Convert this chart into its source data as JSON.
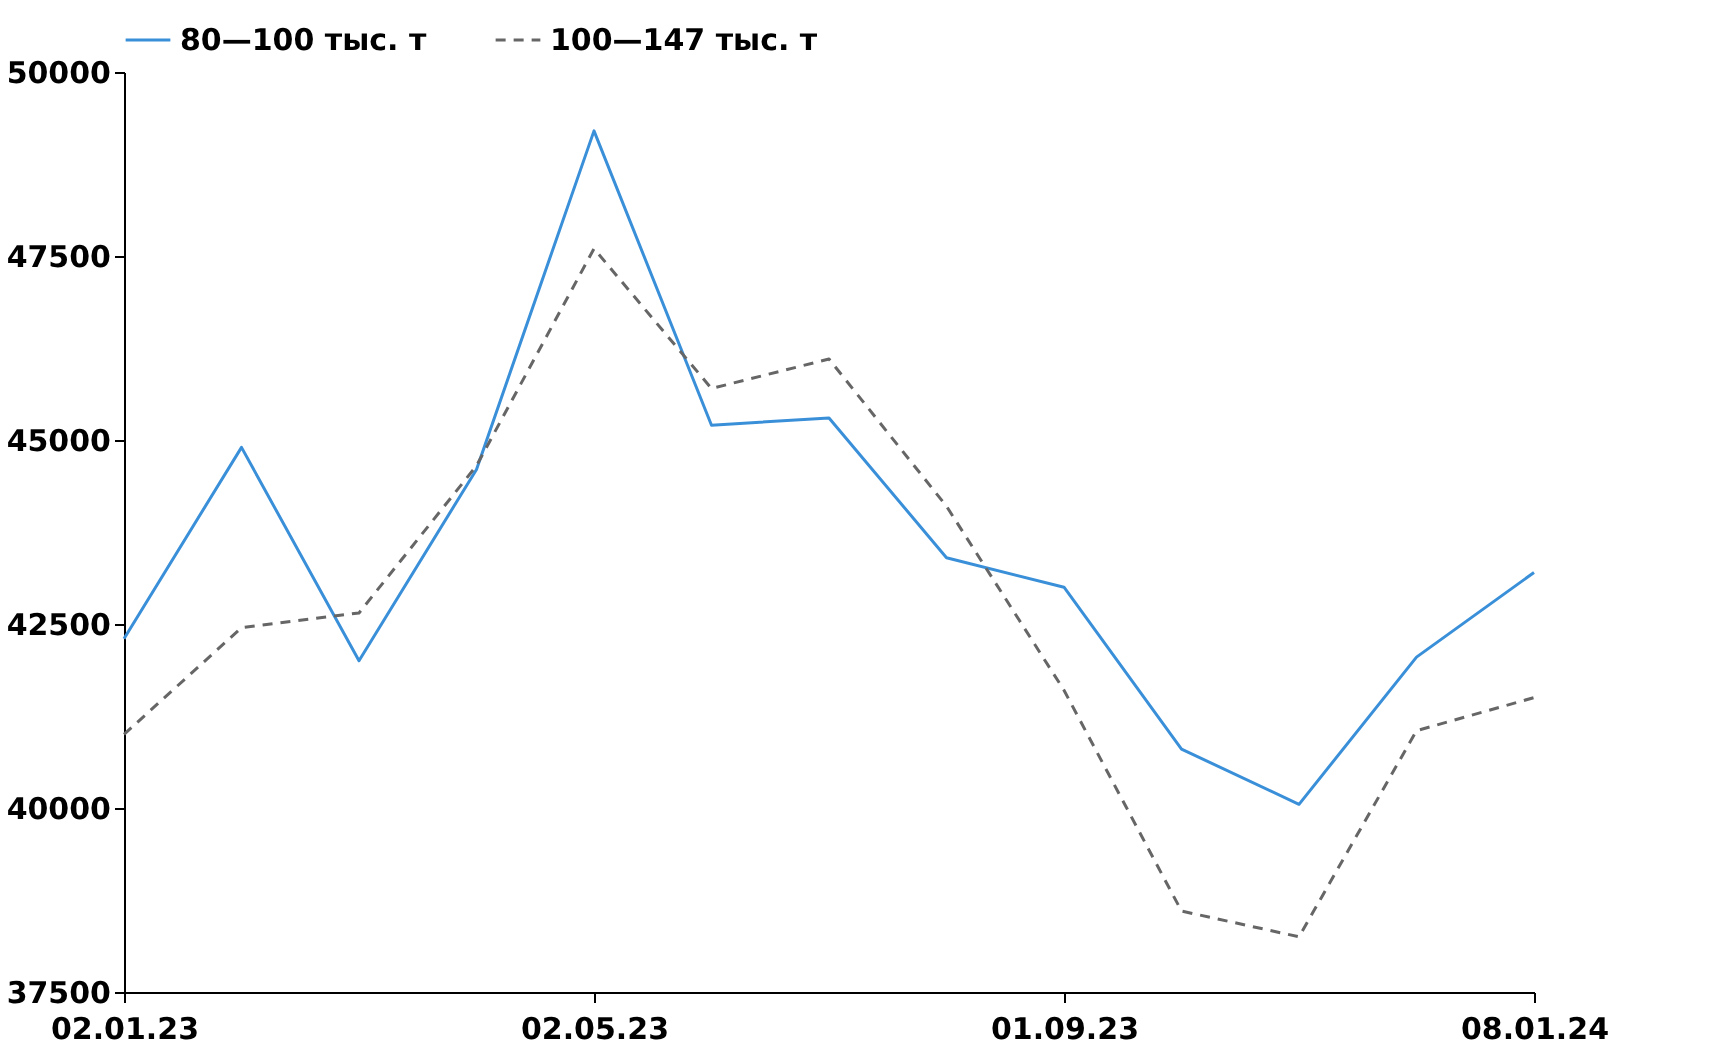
{
  "chart_data": {
    "type": "line",
    "categories": [
      "02.01.23",
      null,
      null,
      null,
      "02.05.23",
      null,
      null,
      null,
      "01.09.23",
      null,
      null,
      null,
      "08.01.24"
    ],
    "series": [
      {
        "name": "80—100 тыс. т",
        "color": "#3a8fd9",
        "line_style": "solid",
        "values": [
          42300,
          44900,
          42000,
          44600,
          49200,
          45200,
          45300,
          43400,
          43000,
          40800,
          40050,
          42050,
          43200
        ]
      },
      {
        "name": "100—147 тыс. т",
        "color": "#666666",
        "line_style": "dashed",
        "values": [
          41000,
          42450,
          42650,
          44650,
          47600,
          45700,
          46100,
          44100,
          41600,
          38600,
          38250,
          41050,
          41500
        ]
      }
    ],
    "ylim": [
      37500,
      50000
    ],
    "yticks": [
      37500,
      40000,
      42500,
      45000,
      47500,
      50000
    ],
    "grid": false,
    "legend": "top",
    "marker": "none"
  }
}
